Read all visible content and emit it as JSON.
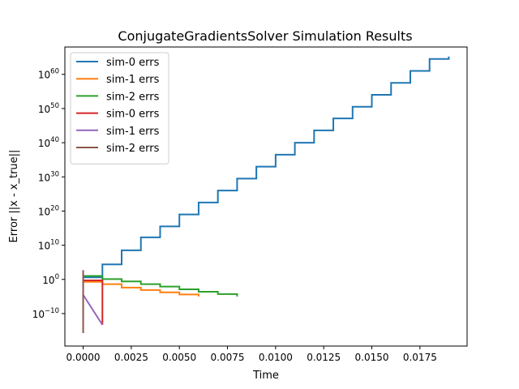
{
  "chart_data": {
    "type": "line",
    "title": "ConjugateGradientsSolver Simulation Results",
    "xlabel": "Time",
    "ylabel": "Error ||x - x_true||",
    "yscale": "log",
    "xlim": [
      -0.00095,
      0.01995
    ],
    "ylim_log10": [
      -19.5,
      68
    ],
    "grid": false,
    "legend_position": "upper-left",
    "x_ticks": [
      {
        "value": 0.0,
        "label": "0.0000"
      },
      {
        "value": 0.0025,
        "label": "0.0025"
      },
      {
        "value": 0.005,
        "label": "0.0050"
      },
      {
        "value": 0.0075,
        "label": "0.0075"
      },
      {
        "value": 0.01,
        "label": "0.0100"
      },
      {
        "value": 0.0125,
        "label": "0.0125"
      },
      {
        "value": 0.015,
        "label": "0.0150"
      },
      {
        "value": 0.0175,
        "label": "0.0175"
      }
    ],
    "y_ticks": [
      {
        "exp": -10,
        "base": "10",
        "exponent": "−10"
      },
      {
        "exp": 0,
        "base": "10",
        "exponent": "0"
      },
      {
        "exp": 10,
        "base": "10",
        "exponent": "10"
      },
      {
        "exp": 20,
        "base": "10",
        "exponent": "20"
      },
      {
        "exp": 30,
        "base": "10",
        "exponent": "30"
      },
      {
        "exp": 40,
        "base": "10",
        "exponent": "40"
      },
      {
        "exp": 50,
        "base": "10",
        "exponent": "50"
      },
      {
        "exp": 60,
        "base": "10",
        "exponent": "60"
      }
    ],
    "series": [
      {
        "name": "sim-0 errs",
        "color": "#1f77b4",
        "x": [
          0,
          0.001,
          0.002,
          0.003,
          0.004,
          0.005,
          0.006,
          0.007,
          0.008,
          0.009,
          0.01,
          0.011,
          0.012,
          0.013,
          0.014,
          0.015,
          0.016,
          0.017,
          0.018,
          0.019
        ],
        "log10_y": [
          0.6,
          4.4,
          8.5,
          12.3,
          15.5,
          19.0,
          22.5,
          26.0,
          29.5,
          33.0,
          36.5,
          40.0,
          43.6,
          47.1,
          50.5,
          54.0,
          57.5,
          61.0,
          64.5,
          65.2
        ],
        "step": true
      },
      {
        "name": "sim-1 errs",
        "color": "#ff7f0e",
        "x": [
          0,
          0.001,
          0.002,
          0.003,
          0.004,
          0.005,
          0.006
        ],
        "log10_y": [
          -0.7,
          -1.4,
          -2.4,
          -3.1,
          -3.8,
          -4.4,
          -5.0
        ],
        "step": true
      },
      {
        "name": "sim-2 errs",
        "color": "#2ca02c",
        "x": [
          0,
          0.001,
          0.002,
          0.003,
          0.004,
          0.005,
          0.006,
          0.007,
          0.008
        ],
        "log10_y": [
          1.0,
          0.1,
          -0.6,
          -1.4,
          -2.1,
          -2.9,
          -3.6,
          -4.3,
          -5.0
        ],
        "step": true
      },
      {
        "name": "sim-0 errs",
        "color": "#d62728",
        "x": [
          0,
          0.001
        ],
        "log10_y": [
          -0.3,
          -13.3
        ],
        "step": true
      },
      {
        "name": "sim-1 errs",
        "color": "#9467bd",
        "x": [
          0,
          0.001
        ],
        "log10_y": [
          -4.5,
          -13.3
        ],
        "step": false
      },
      {
        "name": "sim-2 errs",
        "color": "#8c564b",
        "x": [
          0,
          0
        ],
        "log10_y": [
          2.7,
          -15.7
        ],
        "step": false
      }
    ]
  }
}
